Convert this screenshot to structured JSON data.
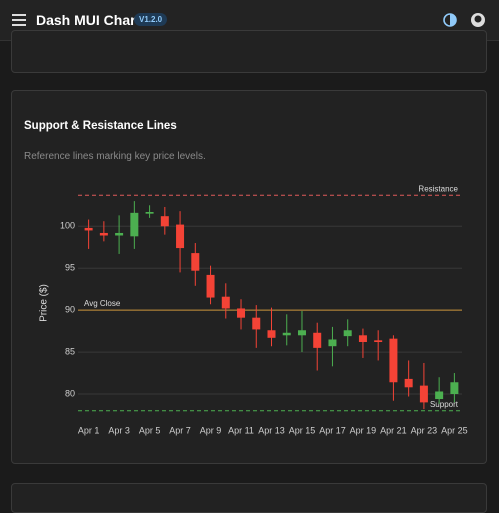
{
  "header": {
    "title": "Dash MUI Charts",
    "version": "V1.2.0"
  },
  "chart_data": {
    "type": "candlestick",
    "title": "Support & Resistance Lines",
    "subtitle": "Reference lines marking key price levels.",
    "y_label": "Price ($)",
    "categories": [
      "Apr 1",
      null,
      "Apr 3",
      null,
      "Apr 5",
      null,
      "Apr 7",
      null,
      "Apr 9",
      null,
      "Apr 11",
      null,
      "Apr 13",
      null,
      "Apr 15",
      null,
      "Apr 17",
      null,
      "Apr 19",
      null,
      "Apr 21",
      null,
      "Apr 23",
      null,
      "Apr 25"
    ],
    "open": [
      99.8,
      99.2,
      98.9,
      98.8,
      101.5,
      101.2,
      100.2,
      96.8,
      94.2,
      91.6,
      90.2,
      89.1,
      87.6,
      87.0,
      87.0,
      87.3,
      85.7,
      86.9,
      87.0,
      86.4,
      86.6,
      81.8,
      81.0,
      79.4,
      80.0
    ],
    "high": [
      100.8,
      100.6,
      101.3,
      103.0,
      102.5,
      102.3,
      101.8,
      98.0,
      95.3,
      93.2,
      91.3,
      90.6,
      90.3,
      89.5,
      89.9,
      88.5,
      88.0,
      88.9,
      87.8,
      87.6,
      87.0,
      84.0,
      83.7,
      82.0,
      82.5
    ],
    "low": [
      97.3,
      98.2,
      96.7,
      97.3,
      101.0,
      99.0,
      94.5,
      92.9,
      90.7,
      89.0,
      87.7,
      85.5,
      85.7,
      85.8,
      85.0,
      82.8,
      83.3,
      85.7,
      84.3,
      84.0,
      79.2,
      79.7,
      78.2,
      78.8,
      79.0
    ],
    "close": [
      99.5,
      98.9,
      99.2,
      101.6,
      101.7,
      100.0,
      97.4,
      94.7,
      91.5,
      90.2,
      89.1,
      87.7,
      86.7,
      87.3,
      87.6,
      85.5,
      86.5,
      87.6,
      86.2,
      86.2,
      81.4,
      80.8,
      79.0,
      80.3,
      81.4
    ],
    "up_color": "#4caf50",
    "down_color": "#f44336",
    "ylim": [
      76.9,
      104.8
    ],
    "yticks": [
      80,
      85,
      90,
      95,
      100
    ],
    "grid": true,
    "reference_lines": [
      {
        "label": "Resistance",
        "value": 103.7,
        "color": "#e05a5a",
        "dashed": true,
        "label_position": "end"
      },
      {
        "label": "Avg Close",
        "value": 90,
        "color": "#c9923a",
        "dashed": false,
        "label_position": "start"
      },
      {
        "label": "Support",
        "value": 78,
        "color": "#4caf50",
        "dashed": true,
        "label_position": "end"
      }
    ]
  }
}
